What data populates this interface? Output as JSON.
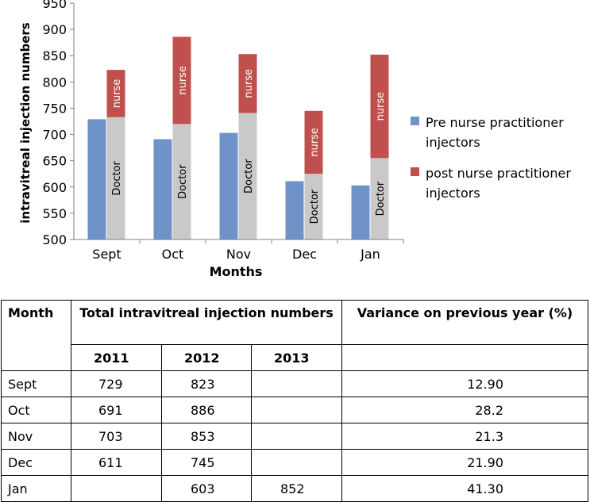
{
  "chart_data": {
    "type": "bar",
    "xlabel": "Months",
    "ylabel": "intravitreal injection numbers",
    "ylim": [
      500,
      950
    ],
    "yticks": [
      500,
      550,
      600,
      650,
      700,
      750,
      800,
      850,
      900,
      950
    ],
    "categories": [
      "Sept",
      "Oct",
      "Nov",
      "Dec",
      "Jan"
    ],
    "series": [
      {
        "name": "Pre nurse practitioner injectors",
        "values": [
          729,
          691,
          703,
          611,
          603
        ],
        "color": "#6f93c9"
      },
      {
        "name": "post nurse practitioner injectors",
        "stacked": true,
        "doctor_values": [
          733,
          720,
          741,
          625,
          655
        ],
        "total_values": [
          823,
          886,
          853,
          745,
          852
        ],
        "doctor_color": "#c9c9c9",
        "nurse_color": "#c0504d"
      }
    ],
    "segment_labels": {
      "doctor": "Doctor",
      "nurse": "nurse"
    },
    "legend": {
      "position": "right"
    },
    "grid": false
  },
  "table": {
    "headers": {
      "month": "Month",
      "total": "Total intravitreal injection numbers",
      "variance": "Variance on previous year (%)"
    },
    "years": [
      "2011",
      "2012",
      "2013"
    ],
    "rows": [
      {
        "month": "Sept",
        "y2011": "729",
        "y2012": "823",
        "y2013": "",
        "variance": "12.90"
      },
      {
        "month": "Oct",
        "y2011": "691",
        "y2012": "886",
        "y2013": "",
        "variance": "28.2"
      },
      {
        "month": "Nov",
        "y2011": "703",
        "y2012": "853",
        "y2013": "",
        "variance": "21.3"
      },
      {
        "month": "Dec",
        "y2011": "611",
        "y2012": "745",
        "y2013": "",
        "variance": "21.90"
      },
      {
        "month": "Jan",
        "y2011": "",
        "y2012": "603",
        "y2013": "852",
        "variance": "41.30"
      }
    ]
  }
}
